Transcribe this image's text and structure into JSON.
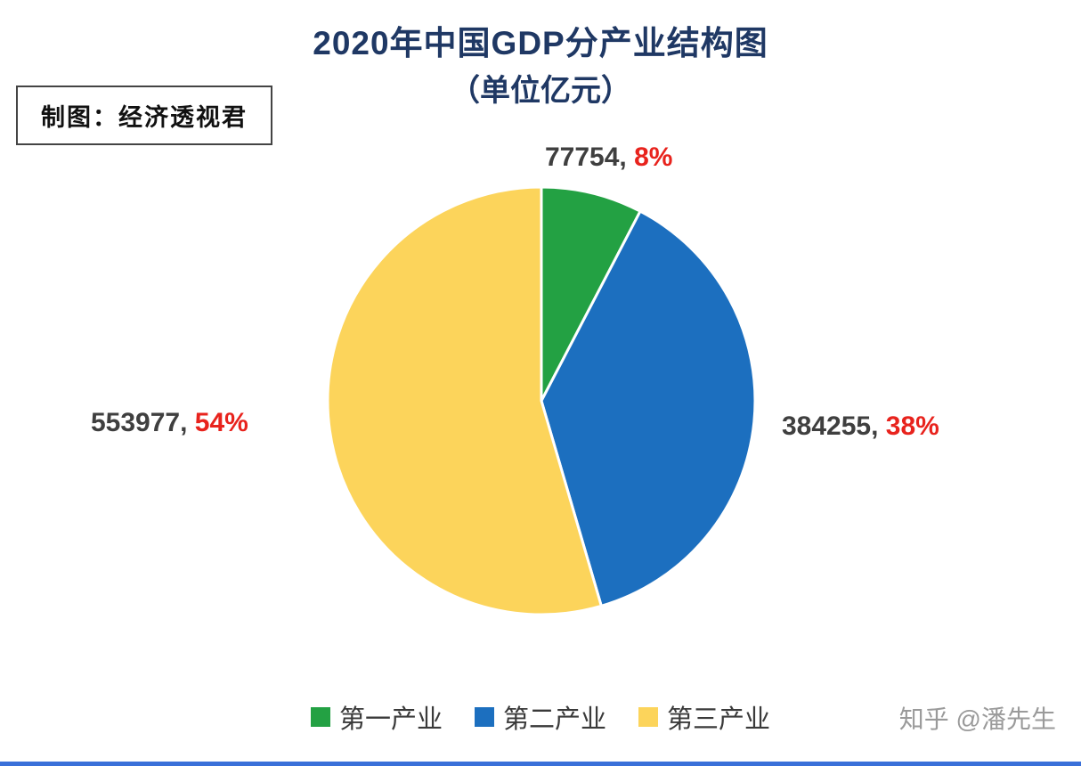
{
  "page": {
    "title_line1": "2020年中国GDP分产业结构图",
    "title_line2": "（单位亿元）",
    "credit_box_label": "制图：经济透视君",
    "watermark": "知乎 @潘先生",
    "colors": {
      "title": "#1f3864",
      "accent_bar": "#3a70d9",
      "value_text": "#3f3f3f",
      "pct_text": "#e8231d",
      "watermark": "#9a9a9a"
    }
  },
  "chart_data": {
    "type": "pie",
    "title": "2020年中国GDP分产业结构图",
    "subtitle": "（单位亿元）",
    "unit": "亿元",
    "start_angle_deg": 0,
    "direction": "clockwise",
    "legend_position": "bottom",
    "slices": [
      {
        "label": "第一产业",
        "value": 77754,
        "pct": 8,
        "color": "#23a143",
        "value_display": "77754,",
        "pct_display": "8%"
      },
      {
        "label": "第二产业",
        "value": 384255,
        "pct": 38,
        "color": "#1c6fbf",
        "value_display": "384255,",
        "pct_display": "38%"
      },
      {
        "label": "第三产业",
        "value": 553977,
        "pct": 54,
        "color": "#fcd45b",
        "value_display": "553977,",
        "pct_display": "54%"
      }
    ]
  }
}
